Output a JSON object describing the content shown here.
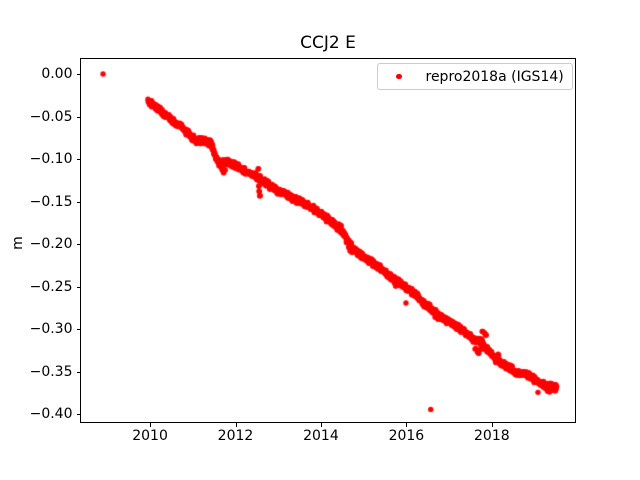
{
  "chart_data": {
    "type": "scatter",
    "title": "CCJ2 E",
    "xlabel": "",
    "ylabel": "m",
    "xlim": [
      2008.36,
      2019.97
    ],
    "ylim": [
      -0.4094,
      0.0193
    ],
    "grid": false,
    "background_color": "#ffffff",
    "axes_color": "#000000",
    "xticks": {
      "values": [
        2010,
        2012,
        2014,
        2016,
        2018
      ],
      "labels": [
        "2010",
        "2012",
        "2014",
        "2016",
        "2018"
      ]
    },
    "yticks": {
      "values": [
        0.0,
        -0.05,
        -0.1,
        -0.15,
        -0.2,
        -0.25,
        -0.3,
        -0.35,
        -0.4
      ],
      "labels": [
        "0.00",
        "−0.05",
        "−0.10",
        "−0.15",
        "−0.20",
        "−0.25",
        "−0.30",
        "−0.35",
        "−0.40"
      ]
    },
    "legend": {
      "location": "upper right",
      "entries": [
        {
          "label": "repro2018a (IGS14)",
          "color": "#ff0000",
          "marker": "dot"
        }
      ]
    },
    "series": [
      {
        "name": "repro2018a (IGS14)",
        "color": "#ff0000",
        "marker": "point",
        "marker_radius_px": 2.7,
        "noise_m": 0.0028,
        "sample_step_years": 0.008,
        "trend_anchors": [
          [
            2009.95,
            -0.031
          ],
          [
            2010.2,
            -0.0415
          ],
          [
            2010.5,
            -0.0535
          ],
          [
            2010.78,
            -0.0645
          ],
          [
            2010.94,
            -0.072
          ],
          [
            2011.06,
            -0.078
          ],
          [
            2011.28,
            -0.0795
          ],
          [
            2011.42,
            -0.081
          ],
          [
            2011.52,
            -0.095
          ],
          [
            2011.58,
            -0.104
          ],
          [
            2011.9,
            -0.1045
          ],
          [
            2012.18,
            -0.113
          ],
          [
            2012.51,
            -0.121
          ],
          [
            2012.72,
            -0.1285
          ],
          [
            2012.92,
            -0.1355
          ],
          [
            2013.12,
            -0.14
          ],
          [
            2013.45,
            -0.1485
          ],
          [
            2013.68,
            -0.154
          ],
          [
            2014.0,
            -0.1645
          ],
          [
            2014.25,
            -0.174
          ],
          [
            2014.4,
            -0.1805
          ],
          [
            2014.56,
            -0.1895
          ],
          [
            2014.75,
            -0.2055
          ],
          [
            2015.0,
            -0.2145
          ],
          [
            2015.3,
            -0.2255
          ],
          [
            2015.62,
            -0.238
          ],
          [
            2015.9,
            -0.2475
          ],
          [
            2016.15,
            -0.2565
          ],
          [
            2016.44,
            -0.2705
          ],
          [
            2016.7,
            -0.2815
          ],
          [
            2017.02,
            -0.2915
          ],
          [
            2017.34,
            -0.302
          ],
          [
            2017.55,
            -0.3115
          ],
          [
            2017.75,
            -0.3145
          ],
          [
            2018.08,
            -0.335
          ],
          [
            2018.31,
            -0.3415
          ],
          [
            2018.59,
            -0.351
          ],
          [
            2018.8,
            -0.3525
          ],
          [
            2018.95,
            -0.3575
          ],
          [
            2019.1,
            -0.361
          ],
          [
            2019.25,
            -0.3665
          ],
          [
            2019.4,
            -0.368
          ],
          [
            2019.52,
            -0.3695
          ]
        ],
        "spike_points": [
          [
            2011.66,
            -0.1095
          ],
          [
            2011.69,
            -0.113
          ],
          [
            2011.72,
            -0.116
          ],
          [
            2011.75,
            -0.1125
          ],
          [
            2012.53,
            -0.1115
          ],
          [
            2012.55,
            -0.132
          ],
          [
            2012.56,
            -0.138
          ],
          [
            2012.58,
            -0.143
          ],
          [
            2014.42,
            -0.1765
          ],
          [
            2014.47,
            -0.178
          ],
          [
            2014.6,
            -0.198
          ],
          [
            2014.65,
            -0.2035
          ],
          [
            2014.69,
            -0.208
          ],
          [
            2014.72,
            -0.2095
          ],
          [
            2015.72,
            -0.2455
          ],
          [
            2015.75,
            -0.249
          ],
          [
            2016.55,
            -0.2775
          ],
          [
            2016.62,
            -0.28
          ],
          [
            2016.68,
            -0.2855
          ],
          [
            2016.74,
            -0.288
          ],
          [
            2017.62,
            -0.3225
          ],
          [
            2017.66,
            -0.3265
          ],
          [
            2017.69,
            -0.328
          ],
          [
            2017.73,
            -0.3235
          ],
          [
            2017.79,
            -0.3025
          ],
          [
            2017.83,
            -0.3045
          ],
          [
            2017.87,
            -0.3065
          ],
          [
            2018.13,
            -0.3335
          ],
          [
            2018.16,
            -0.33
          ],
          [
            2019.3,
            -0.3725
          ],
          [
            2019.35,
            -0.3735
          ],
          [
            2019.44,
            -0.371
          ],
          [
            2019.48,
            -0.3715
          ]
        ],
        "isolated_points": [
          [
            2008.9,
            0.0
          ],
          [
            2015.99,
            -0.269
          ],
          [
            2016.57,
            -0.394
          ],
          [
            2019.08,
            -0.374
          ]
        ]
      }
    ]
  }
}
